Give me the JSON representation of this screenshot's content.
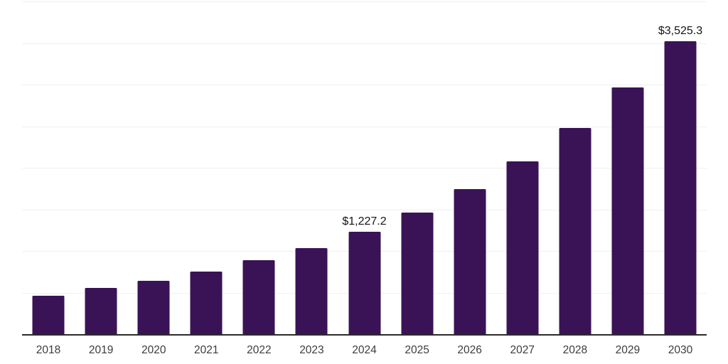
{
  "chart_data": {
    "type": "bar",
    "categories": [
      "2018",
      "2019",
      "2020",
      "2021",
      "2022",
      "2023",
      "2024",
      "2025",
      "2026",
      "2027",
      "2028",
      "2029",
      "2030"
    ],
    "values": [
      465.0,
      554.9,
      642.2,
      751.0,
      888.0,
      1034.0,
      1227.2,
      1459.5,
      1747.0,
      2079.0,
      2478.0,
      2963.0,
      3525.3
    ],
    "value_labels": {
      "2024": "$1,227.2",
      "2030": "$3,525.3"
    },
    "ylim": [
      0,
      4000
    ],
    "gridline_step": 500,
    "grid": true,
    "legend": false,
    "x_axis_line": true,
    "y_axis_labels_visible": false,
    "colors": {
      "bar": "#3A1356",
      "gridline": "#F0F0F0",
      "axis_line": "#2B2B2B",
      "tick_label": "#3C3C3C",
      "value_label": "#141414",
      "background": "#FFFFFF"
    }
  }
}
